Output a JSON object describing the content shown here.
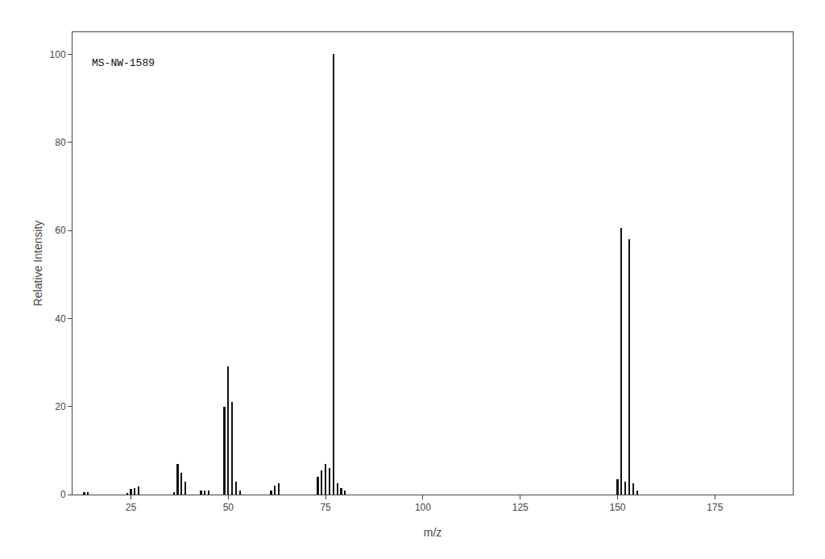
{
  "chart_data": {
    "type": "bar",
    "annotations": [
      "MS-NW-1589"
    ],
    "xlabel": "m/z",
    "ylabel": "Relative Intensity",
    "x": [
      13,
      14,
      24,
      25,
      26,
      27,
      36,
      37,
      38,
      39,
      43,
      44,
      45,
      49,
      50,
      51,
      52,
      53,
      61,
      62,
      63,
      73,
      74,
      75,
      76,
      77,
      78,
      79,
      80,
      150,
      151,
      152,
      153,
      154,
      155
    ],
    "values": [
      0.5,
      0.5,
      0.3,
      1.2,
      1.5,
      1.8,
      0.5,
      7.0,
      5.0,
      3.0,
      1.0,
      1.0,
      1.0,
      20.0,
      29.0,
      21.0,
      3.0,
      1.0,
      1.0,
      2.0,
      2.5,
      4.0,
      5.5,
      7.0,
      6.0,
      100.0,
      2.5,
      1.5,
      1.0,
      3.5,
      60.5,
      3.0,
      58.0,
      2.5,
      1.0
    ],
    "color": "#111111",
    "xlim": [
      10,
      195
    ],
    "ylim": [
      0,
      105
    ],
    "xticks": [
      25,
      50,
      75,
      100,
      125,
      150,
      175
    ],
    "yticks": [
      0,
      20,
      40,
      60,
      80,
      100
    ],
    "grid": false
  }
}
